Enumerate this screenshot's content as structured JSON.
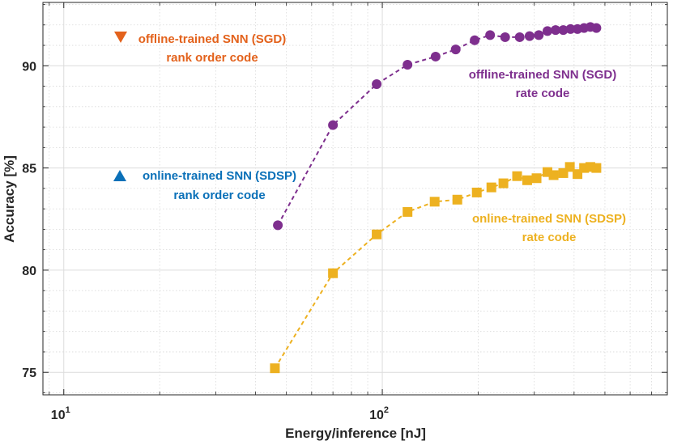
{
  "chart_data": {
    "type": "scatter",
    "title": "",
    "xlabel": "Energy/inference [nJ]",
    "ylabel": "Accuracy [%]",
    "xscale": "log",
    "xlim": [
      8.6,
      785
    ],
    "ylim": [
      73.9,
      93.1
    ],
    "x_ticks": [
      {
        "base": "10",
        "exp": "1",
        "value": 10
      },
      {
        "base": "10",
        "exp": "2",
        "value": 100
      }
    ],
    "y_ticks": [
      {
        "label": "75",
        "value": 75
      },
      {
        "label": "80",
        "value": 80
      },
      {
        "label": "85",
        "value": 85
      },
      {
        "label": "90",
        "value": 90
      }
    ],
    "grid": true,
    "series": [
      {
        "name": "offline-trained SNN (SGD) rate code",
        "marker": "circle",
        "color": "#7e2f8e",
        "line": "dashed",
        "x": [
          47,
          70,
          96,
          120,
          147,
          170,
          195,
          218,
          243,
          270,
          290,
          310,
          330,
          350,
          370,
          390,
          410,
          430,
          450,
          470
        ],
        "y": [
          82.2,
          87.1,
          89.1,
          90.05,
          90.45,
          90.8,
          91.25,
          91.5,
          91.4,
          91.4,
          91.45,
          91.5,
          91.7,
          91.75,
          91.75,
          91.8,
          91.8,
          91.85,
          91.9,
          91.85
        ]
      },
      {
        "name": "online-trained SNN (SDSP) rate code",
        "marker": "square",
        "color": "#edb120",
        "line": "dashed",
        "x": [
          46,
          70,
          96,
          120,
          146,
          172,
          198,
          220,
          240,
          265,
          285,
          305,
          330,
          345,
          370,
          388,
          410,
          430,
          450,
          470
        ],
        "y": [
          75.2,
          79.85,
          81.75,
          82.85,
          83.35,
          83.45,
          83.8,
          84.05,
          84.25,
          84.6,
          84.4,
          84.5,
          84.8,
          84.65,
          84.75,
          85.05,
          84.7,
          85.0,
          85.05,
          85.0
        ]
      }
    ],
    "legend_markers": [
      {
        "name": "offline-trained SNN (SGD) rank order code",
        "marker": "triangle-down",
        "color": "#e3621c"
      },
      {
        "name": "online-trained SNN (SDSP) rank order code",
        "marker": "triangle-up",
        "color": "#0a70b8"
      }
    ],
    "annotations": [
      {
        "id": "off-rank",
        "line1": "offline-trained SNN (SGD)",
        "line2": "rank order code",
        "color": "#e3621c",
        "marker": "triangle-down"
      },
      {
        "id": "off-rate",
        "line1": "offline-trained SNN (SGD)",
        "line2": "rate code",
        "color": "#7e2f8e",
        "marker": ""
      },
      {
        "id": "on-rank",
        "line1": "online-trained SNN (SDSP)",
        "line2": "rank order code",
        "color": "#0a70b8",
        "marker": "triangle-up"
      },
      {
        "id": "on-rate",
        "line1": "online-trained SNN (SDSP)",
        "line2": "rate code",
        "color": "#edb120",
        "marker": ""
      }
    ]
  }
}
